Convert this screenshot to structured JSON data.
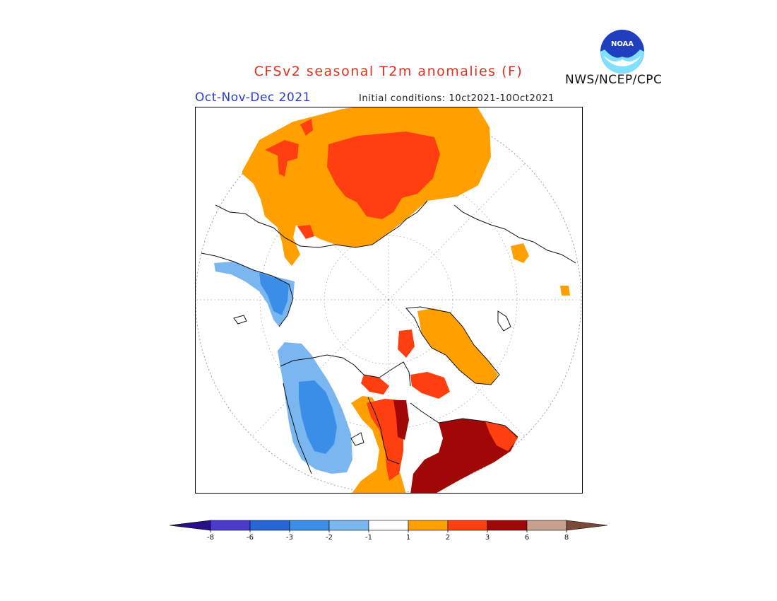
{
  "header": {
    "title": "CFSv2 seasonal T2m anomalies (F)",
    "period": "Oct-Nov-Dec 2021",
    "initial_conditions": "Initial conditions: 10ct2021-10Oct2021",
    "credit": "NWS/NCEP/CPC",
    "logo_text": "NOAA"
  },
  "map": {
    "projection": "polar stereographic (north pole)"
  },
  "legend": {
    "ticks": [
      "-8",
      "-6",
      "-3",
      "-2",
      "-1",
      "1",
      "2",
      "3",
      "6",
      "8"
    ],
    "colors": [
      "#2a0f8a",
      "#4b3ad0",
      "#2666d6",
      "#3b8ee8",
      "#7ab6f0",
      "#ffffff",
      "#ff9f00",
      "#ff3f10",
      "#a00808",
      "#c9a090",
      "#7a4a38"
    ]
  }
}
